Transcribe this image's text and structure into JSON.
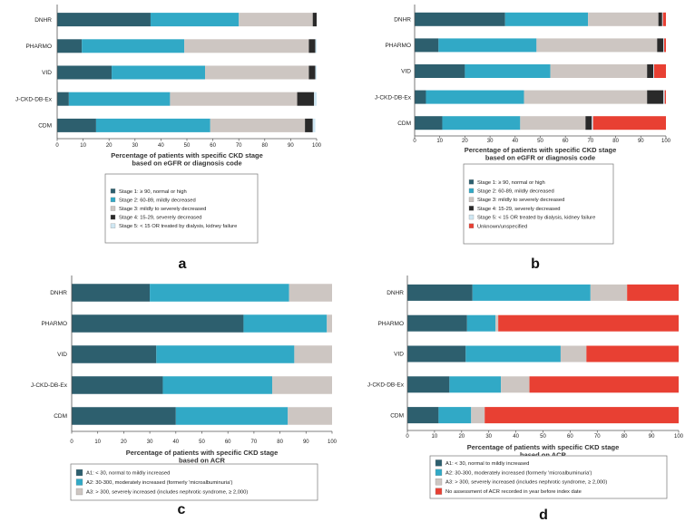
{
  "chart_data": [
    {
      "panel": "a",
      "type": "bar",
      "orientation": "horizontal",
      "stacked": true,
      "categories": [
        "DNHR",
        "PHARMO",
        "VID",
        "J-CKD-DB-Ex",
        "CDM"
      ],
      "xlim": [
        0,
        100
      ],
      "xticks": [
        0,
        10,
        20,
        30,
        40,
        50,
        60,
        70,
        80,
        90,
        100
      ],
      "xlabel_lines": [
        "Percentage of patients with specific CKD stage",
        "based on eGFR or diagnosis code"
      ],
      "series": [
        {
          "name": "Stage 1: ≥ 90, normal or high",
          "color": "#2d5f6e",
          "values": [
            36,
            9.5,
            21,
            4.5,
            15
          ]
        },
        {
          "name": "Stage 2: 60-89, mildly decreased",
          "color": "#31a9c6",
          "values": [
            34,
            39.5,
            36,
            39,
            44
          ]
        },
        {
          "name": "Stage 3: mildly to severely decreased",
          "color": "#cdc6c2",
          "values": [
            28.5,
            48,
            40,
            49,
            36.5
          ]
        },
        {
          "name": "Stage 4: 15-29, severely decreased",
          "color": "#2a2a2a",
          "values": [
            1.5,
            2.5,
            2.5,
            6.5,
            3
          ]
        },
        {
          "name": "Stage 5: < 15 OR treated by dialysis, kidney failure",
          "color": "#cfe7f3",
          "values": [
            0,
            0.5,
            0.5,
            1,
            1
          ]
        }
      ],
      "legend_position": "bottom"
    },
    {
      "panel": "b",
      "type": "bar",
      "orientation": "horizontal",
      "stacked": true,
      "categories": [
        "DNHR",
        "PHARMO",
        "VID",
        "J-CKD-DB-Ex",
        "CDM"
      ],
      "xlim": [
        0,
        100
      ],
      "xticks": [
        0,
        10,
        20,
        30,
        40,
        50,
        60,
        70,
        80,
        90,
        100
      ],
      "xlabel_lines": [
        "Percentage of patients with specific CKD stage",
        "based on eGFR or diagnosis code"
      ],
      "series": [
        {
          "name": "Stage 1: ≥ 90, normal or high",
          "color": "#2d5f6e",
          "values": [
            36,
            9.5,
            20,
            4.5,
            11
          ]
        },
        {
          "name": "Stage 2: 60-89, mildly decreased",
          "color": "#31a9c6",
          "values": [
            33,
            39,
            34,
            39,
            31
          ]
        },
        {
          "name": "Stage 3: mildly to severely decreased",
          "color": "#cdc6c2",
          "values": [
            28,
            48,
            38.5,
            49,
            26
          ]
        },
        {
          "name": "Stage 4: 15-29, severely decreased",
          "color": "#2a2a2a",
          "values": [
            1.5,
            2.5,
            2.5,
            6.5,
            2.5
          ]
        },
        {
          "name": "Stage 5: < 15 OR treated by dialysis, kidney failure",
          "color": "#cfe7f3",
          "values": [
            0.3,
            0.3,
            0.3,
            0.5,
            0.5
          ]
        },
        {
          "name": "Unknown/unspecified",
          "color": "#e84033",
          "values": [
            1.2,
            0.7,
            4.7,
            0.5,
            29
          ]
        }
      ],
      "legend_position": "bottom"
    },
    {
      "panel": "c",
      "type": "bar",
      "orientation": "horizontal",
      "stacked": true,
      "categories": [
        "DNHR",
        "PHARMO",
        "VID",
        "J-CKD-DB-Ex",
        "CDM"
      ],
      "xlim": [
        0,
        100
      ],
      "xticks": [
        0,
        10,
        20,
        30,
        40,
        50,
        60,
        70,
        80,
        90,
        100
      ],
      "xlabel_lines": [
        "Percentage of patients with specific CKD stage",
        "based on ACR"
      ],
      "series": [
        {
          "name": "A1: < 30, normal to mildly increased",
          "color": "#2d5f6e",
          "values": [
            30,
            66,
            32.5,
            35,
            40
          ]
        },
        {
          "name": "A2: 30-300, moderately increased (formerly 'microalbuminuria')",
          "color": "#31a9c6",
          "values": [
            53.5,
            32,
            53,
            42,
            43
          ]
        },
        {
          "name": "A3: > 300, severely increased (includes nephrotic syndrome, ≥ 2,000)",
          "color": "#cdc6c2",
          "values": [
            16.5,
            2,
            14.5,
            23,
            17
          ]
        }
      ],
      "legend_position": "bottom"
    },
    {
      "panel": "d",
      "type": "bar",
      "orientation": "horizontal",
      "stacked": true,
      "categories": [
        "DNHR",
        "PHARMO",
        "VID",
        "J-CKD-DB-Ex",
        "CDM"
      ],
      "xlim": [
        0,
        100
      ],
      "xticks": [
        0,
        10,
        20,
        30,
        40,
        50,
        60,
        70,
        80,
        90,
        100
      ],
      "xlabel_lines": [
        "Percentage of patients with specific CKD stage",
        "based on ACR"
      ],
      "series": [
        {
          "name": "A1: < 30, normal to mildly increased",
          "color": "#2d5f6e",
          "values": [
            24,
            22,
            21.5,
            15.5,
            11.5
          ]
        },
        {
          "name": "A2: 30-300, moderately increased (formerly 'microalbuminuria')",
          "color": "#31a9c6",
          "values": [
            43.5,
            10.5,
            35,
            19,
            12
          ]
        },
        {
          "name": "A3: > 300, severely increased (includes nephrotic syndrome, ≥ 2,000)",
          "color": "#cdc6c2",
          "values": [
            13.5,
            1,
            9.5,
            10.5,
            5
          ]
        },
        {
          "name": "No assessment of ACR recorded in year before index date",
          "color": "#e84033",
          "values": [
            19,
            66.5,
            34,
            55,
            71.5
          ]
        }
      ],
      "legend_position": "bottom"
    }
  ]
}
